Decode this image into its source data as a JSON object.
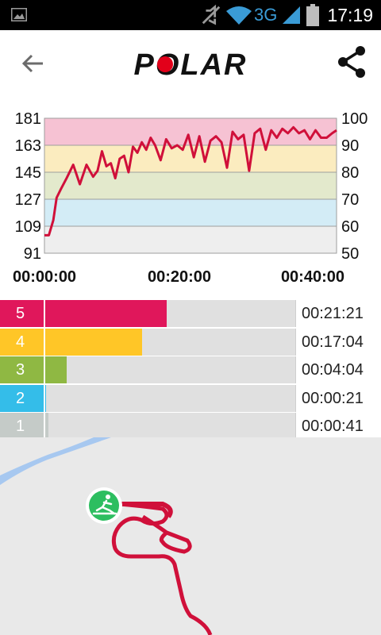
{
  "status_bar": {
    "network": "3G",
    "time": "17:19"
  },
  "header": {
    "logo": "POLAR"
  },
  "chart_data": {
    "type": "line",
    "x_ticks": [
      "00:00:00",
      "00:20:00",
      "00:40:00"
    ],
    "y_left_ticks": [
      "181",
      "163",
      "145",
      "127",
      "109",
      "91"
    ],
    "y_right_ticks": [
      "100",
      "90",
      "80",
      "70",
      "60",
      "50"
    ],
    "ylim_left": [
      91,
      181
    ],
    "ylim_right": [
      50,
      100
    ],
    "xlim_seconds": [
      0,
      2640
    ],
    "zone_bands_percent": [
      {
        "zone": 5,
        "from": 90,
        "to": 100,
        "color": "#f6c2d3"
      },
      {
        "zone": 4,
        "from": 80,
        "to": 90,
        "color": "#fbecbf"
      },
      {
        "zone": 3,
        "from": 70,
        "to": 80,
        "color": "#e3e9cc"
      },
      {
        "zone": 2,
        "from": 60,
        "to": 70,
        "color": "#d3ecf6"
      },
      {
        "zone": 1,
        "from": 50,
        "to": 60,
        "color": "#eeeeee"
      }
    ],
    "series": [
      {
        "color": "#d0103a",
        "x": [
          0,
          40,
          80,
          110,
          150,
          200,
          260,
          320,
          380,
          440,
          480,
          520,
          560,
          600,
          640,
          680,
          720,
          760,
          800,
          840,
          880,
          920,
          960,
          1000,
          1050,
          1100,
          1150,
          1200,
          1250,
          1300,
          1350,
          1400,
          1450,
          1500,
          1550,
          1600,
          1650,
          1700,
          1750,
          1800,
          1850,
          1900,
          1950,
          2000,
          2050,
          2100,
          2150,
          2200,
          2250,
          2300,
          2350,
          2400,
          2450,
          2500,
          2550,
          2600,
          2640
        ],
        "y": [
          103,
          103,
          113,
          128,
          134,
          141,
          150,
          137,
          150,
          142,
          146,
          159,
          149,
          151,
          141,
          154,
          156,
          145,
          162,
          158,
          165,
          160,
          168,
          163,
          153,
          167,
          161,
          163,
          160,
          170,
          155,
          169,
          152,
          166,
          169,
          165,
          148,
          172,
          167,
          170,
          146,
          171,
          174,
          160,
          173,
          168,
          174,
          171,
          175,
          171,
          173,
          167,
          173,
          168,
          168,
          171,
          173
        ]
      }
    ]
  },
  "zones": [
    {
      "number": "5",
      "duration": "00:21:21",
      "fraction": 0.49,
      "color": "#e0175b"
    },
    {
      "number": "4",
      "duration": "00:17:04",
      "fraction": 0.39,
      "color": "#ffc627"
    },
    {
      "number": "3",
      "duration": "00:04:04",
      "fraction": 0.09,
      "color": "#8fb843"
    },
    {
      "number": "2",
      "duration": "00:00:21",
      "fraction": 0.01,
      "color": "#34bde9"
    },
    {
      "number": "1",
      "duration": "00:00:41",
      "fraction": 0.02,
      "color": "#c5cbc8"
    }
  ],
  "map": {
    "marker_icon": "cross-country-skiing-icon",
    "route_color": "#d0103a",
    "marker_color": "#2dbe60"
  }
}
